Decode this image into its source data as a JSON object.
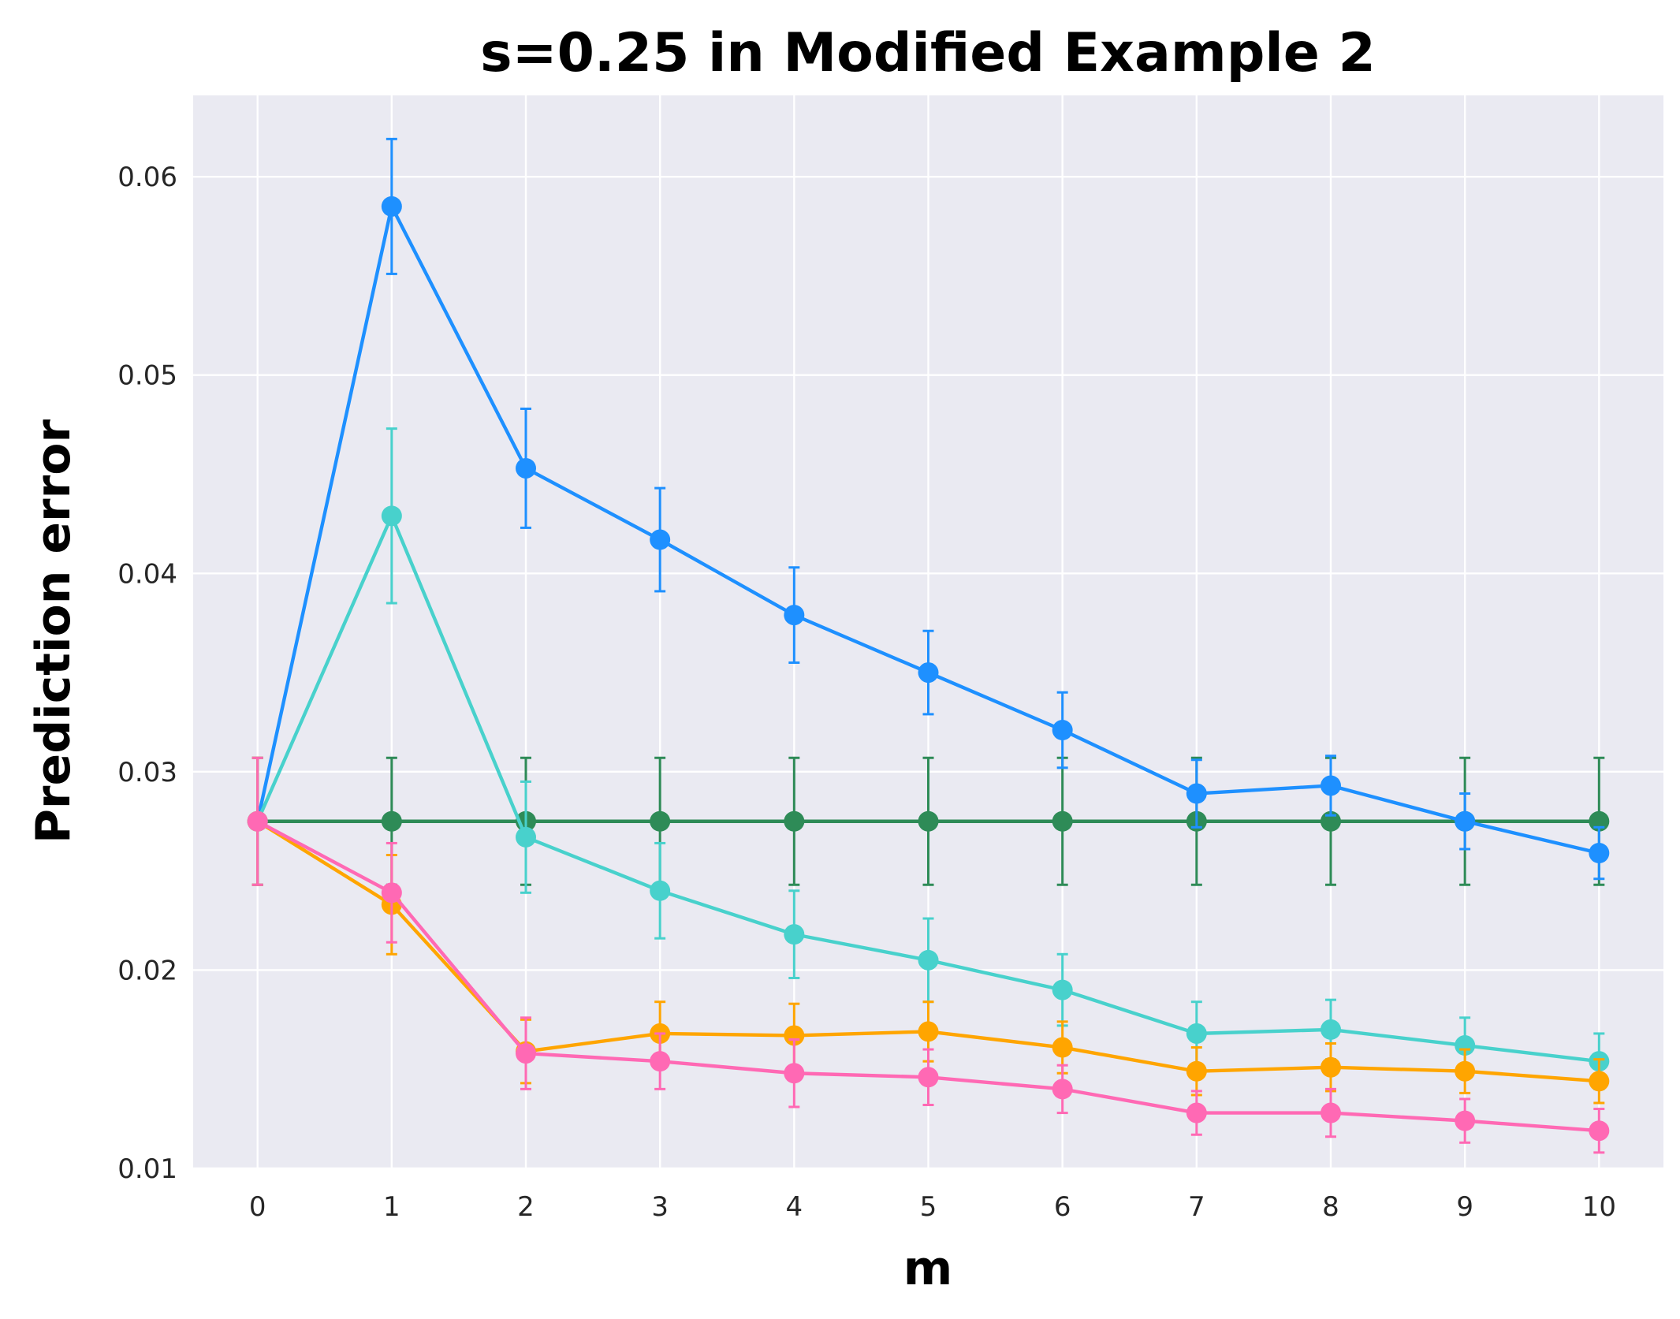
{
  "chart_data": {
    "type": "line",
    "title": "s=0.25 in Modified Example 2",
    "xlabel": "m",
    "ylabel": "Prediction error",
    "xlim": [
      -0.48,
      10.48
    ],
    "ylim": [
      0.01,
      0.0641
    ],
    "x": [
      0,
      1,
      2,
      3,
      4,
      5,
      6,
      7,
      8,
      9,
      10
    ],
    "x_ticks": [
      "0",
      "1",
      "2",
      "3",
      "4",
      "5",
      "6",
      "7",
      "8",
      "9",
      "10"
    ],
    "y_ticks": [
      0.01,
      0.02,
      0.03,
      0.04,
      0.05,
      0.06
    ],
    "y_tick_labels": [
      "0.01",
      "0.02",
      "0.03",
      "0.04",
      "0.05",
      "0.06"
    ],
    "grid": true,
    "background": "#EAEAF2",
    "series": [
      {
        "color": "#2E8B57",
        "values": [
          0.0275,
          0.0275,
          0.0275,
          0.0275,
          0.0275,
          0.0275,
          0.0275,
          0.0275,
          0.0275,
          0.0275,
          0.0275
        ],
        "errors": [
          0.0032,
          0.0032,
          0.0032,
          0.0032,
          0.0032,
          0.0032,
          0.0032,
          0.0032,
          0.0032,
          0.0032,
          0.0032
        ]
      },
      {
        "color": "#1E90FF",
        "values": [
          0.0275,
          0.0585,
          0.0453,
          0.0417,
          0.0379,
          0.035,
          0.0321,
          0.0289,
          0.0293,
          0.0275,
          0.0259
        ],
        "errors": [
          0.0032,
          0.0034,
          0.003,
          0.0026,
          0.0024,
          0.0021,
          0.0019,
          0.0017,
          0.0015,
          0.0014,
          0.0013
        ]
      },
      {
        "color": "#48D1CC",
        "values": [
          0.0275,
          0.0429,
          0.0267,
          0.024,
          0.0218,
          0.0205,
          0.019,
          0.0168,
          0.017,
          0.0162,
          0.0154
        ],
        "errors": [
          0.0032,
          0.0044,
          0.0028,
          0.0024,
          0.0022,
          0.0021,
          0.0018,
          0.0016,
          0.0015,
          0.0014,
          0.0014
        ]
      },
      {
        "color": "#FFA500",
        "values": [
          0.0275,
          0.0233,
          0.0159,
          0.0168,
          0.0167,
          0.0169,
          0.0161,
          0.0149,
          0.0151,
          0.0149,
          0.0144
        ],
        "errors": [
          0.0032,
          0.0025,
          0.0016,
          0.0016,
          0.0016,
          0.0015,
          0.0013,
          0.0012,
          0.0012,
          0.0011,
          0.0011
        ]
      },
      {
        "color": "#FF69B4",
        "values": [
          0.0275,
          0.0239,
          0.0158,
          0.0154,
          0.0148,
          0.0146,
          0.014,
          0.0128,
          0.0128,
          0.0124,
          0.0119
        ],
        "errors": [
          0.0032,
          0.0025,
          0.0018,
          0.0014,
          0.0017,
          0.0014,
          0.0012,
          0.0011,
          0.0012,
          0.0011,
          0.0011
        ]
      }
    ]
  }
}
